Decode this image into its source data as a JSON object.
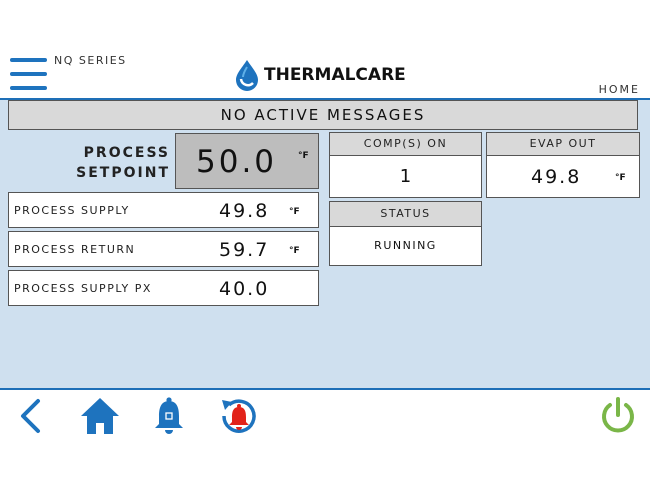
{
  "header": {
    "series": "NQ SERIES",
    "logo_text": "THERMALCARE",
    "home": "HOME",
    "menu_icon": "hamburger-menu-icon"
  },
  "message_bar": "NO ACTIVE MESSAGES",
  "setpoint": {
    "label_line1": "PROCESS",
    "label_line2": "SETPOINT",
    "value": "50.0",
    "unit": "°F"
  },
  "readings": [
    {
      "label": "PROCESS SUPPLY",
      "value": "49.8",
      "unit": "°F"
    },
    {
      "label": "PROCESS RETURN",
      "value": "59.7",
      "unit": "°F"
    },
    {
      "label": "PROCESS SUPPLY PX",
      "value": "40.0",
      "unit": ""
    }
  ],
  "comps_on": {
    "label": "COMP(S) ON",
    "value": "1"
  },
  "evap_out": {
    "label": "EVAP OUT",
    "value": "49.8",
    "unit": "°F"
  },
  "status": {
    "label": "STATUS",
    "value": "RUNNING"
  },
  "colors": {
    "accent_blue": "#1e73be",
    "panel_bg": "#cfe0ef",
    "header_gray": "#d9d9d9",
    "alarm_red": "#e2231a",
    "power_green": "#7ab648"
  },
  "footer_icons": [
    "back-arrow-icon",
    "home-icon",
    "alarm-bell-icon",
    "alarm-history-icon",
    "power-icon"
  ]
}
